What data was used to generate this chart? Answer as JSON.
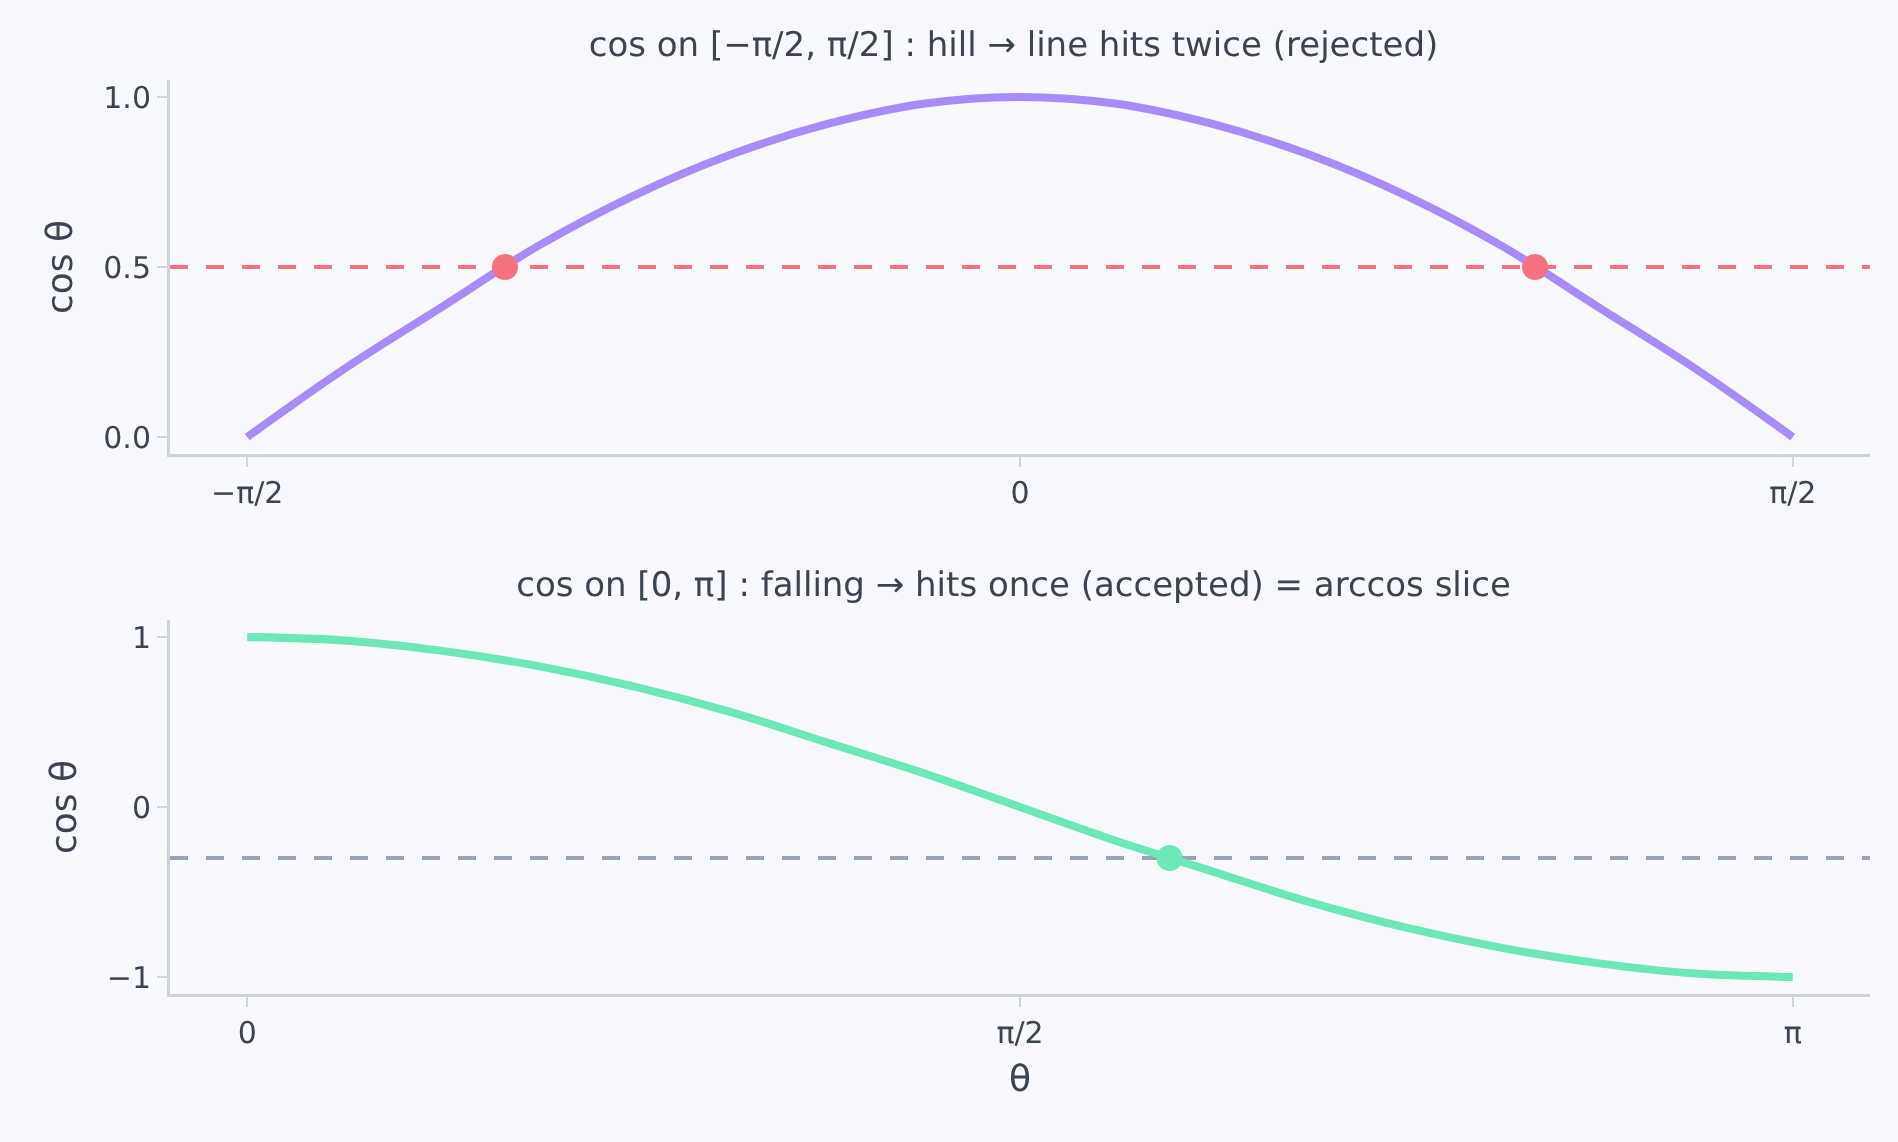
{
  "chart_data": [
    {
      "type": "line",
      "title": "cos on [−π/2, π/2] : hill → line hits twice (rejected)",
      "ylabel": "cos θ",
      "xlim": [
        -1.728,
        1.728
      ],
      "ylim": [
        -0.05,
        1.05
      ],
      "xticks": [
        {
          "value": -1.571,
          "label": "−π/2"
        },
        {
          "value": 0,
          "label": "0"
        },
        {
          "value": 1.571,
          "label": "π/2"
        }
      ],
      "yticks": [
        {
          "value": 0,
          "label": "0.0"
        },
        {
          "value": 0.5,
          "label": "0.5"
        },
        {
          "value": 1,
          "label": "1.0"
        }
      ],
      "grid": false,
      "line_style": "solid",
      "series": [
        {
          "type": "line",
          "color": "#a78bfa",
          "x": [
            -1.571,
            -1.374,
            -1.178,
            -0.982,
            -0.785,
            -0.589,
            -0.393,
            -0.196,
            0,
            0.196,
            0.393,
            0.589,
            0.785,
            0.982,
            1.178,
            1.374,
            1.571
          ],
          "values": [
            0,
            0.2,
            0.38,
            0.56,
            0.71,
            0.83,
            0.92,
            0.98,
            1,
            0.98,
            0.92,
            0.83,
            0.71,
            0.56,
            0.38,
            0.2,
            0
          ]
        },
        {
          "type": "scatter",
          "color": "#f4727f",
          "x": [
            -1.047,
            1.047
          ],
          "values": [
            0.5,
            0.5
          ]
        }
      ],
      "ref_lines": [
        {
          "axis": "y",
          "value": 0.5,
          "label": null,
          "color": "#f4727f",
          "line_style": "dashed"
        }
      ]
    },
    {
      "type": "line",
      "title": "cos on [0, π] : falling → hits once (accepted) = arccos slice",
      "xlabel": "θ",
      "ylabel": "cos θ",
      "xlim": [
        -0.157,
        3.299
      ],
      "ylim": [
        -1.1,
        1.1
      ],
      "xticks": [
        {
          "value": 0,
          "label": "0"
        },
        {
          "value": 1.571,
          "label": "π/2"
        },
        {
          "value": 3.142,
          "label": "π"
        }
      ],
      "yticks": [
        {
          "value": -1,
          "label": "−1"
        },
        0,
        1
      ],
      "grid": false,
      "line_style": "solid",
      "series": [
        {
          "type": "line",
          "color": "#6ee7b7",
          "x": [
            0,
            0.196,
            0.393,
            0.589,
            0.785,
            0.982,
            1.178,
            1.374,
            1.571,
            1.767,
            1.963,
            2.16,
            2.356,
            2.553,
            2.749,
            2.945,
            3.142
          ],
          "values": [
            1,
            0.98,
            0.92,
            0.83,
            0.71,
            0.56,
            0.38,
            0.2,
            0,
            -0.2,
            -0.38,
            -0.56,
            -0.71,
            -0.83,
            -0.92,
            -0.98,
            -1
          ]
        },
        {
          "type": "scatter",
          "color": "#6ee7b7",
          "x": [
            1.875
          ],
          "values": [
            -0.3
          ]
        }
      ],
      "ref_lines": [
        {
          "axis": "y",
          "value": -0.3,
          "label": null,
          "color": "#94a3b8",
          "line_style": "dashed"
        }
      ]
    }
  ]
}
